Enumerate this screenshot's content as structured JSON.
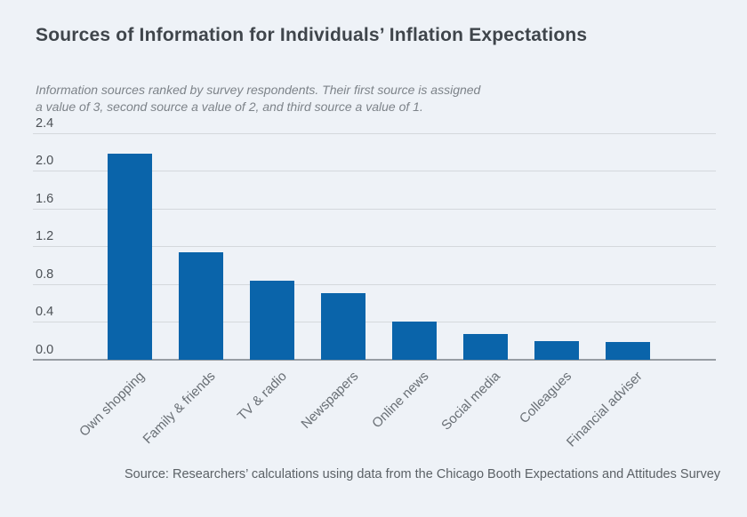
{
  "chart_data": {
    "type": "bar",
    "title": "Sources of Information for Individuals’ Inflation Expectations",
    "subtitle_lines": [
      "Information sources ranked by survey respondents. Their first source is assigned",
      "a value of 3, second source a value of 2, and third source a value of 1."
    ],
    "categories": [
      "Own shopping",
      "Family & friends",
      "TV & radio",
      "Newspapers",
      "Online news",
      "Social media",
      "Colleagues",
      "Financial adviser"
    ],
    "values": [
      2.18,
      1.13,
      0.83,
      0.7,
      0.4,
      0.27,
      0.19,
      0.18
    ],
    "ytick_labels": [
      "0.0",
      "0.4",
      "0.8",
      "1.2",
      "1.6",
      "2.0",
      "2.4"
    ],
    "ylim": [
      0,
      2.4
    ],
    "grid": "horizontal",
    "legend": "none",
    "bar_color": "#0a64aa",
    "background_color": "#eef2f7",
    "source": "Source: Researchers’ calculations using data from the Chicago Booth Expectations and Attitudes Survey"
  }
}
